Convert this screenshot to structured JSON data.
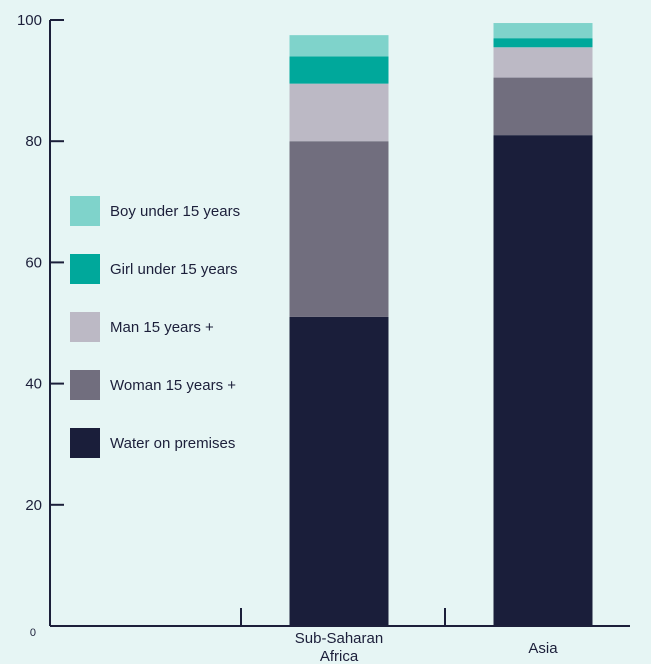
{
  "chart_data": {
    "type": "bar",
    "stacked": true,
    "title": "",
    "xlabel": "",
    "ylabel": "",
    "ylim": [
      0,
      100
    ],
    "yticks": [
      {
        "value": 0,
        "label": "0"
      },
      {
        "value": 20,
        "label": "20"
      },
      {
        "value": 40,
        "label": "40"
      },
      {
        "value": 60,
        "label": "60"
      },
      {
        "value": 80,
        "label": "80"
      },
      {
        "value": 100,
        "label": "100"
      }
    ],
    "categories": [
      "",
      "Sub-Saharan Africa",
      "Asia"
    ],
    "series": [
      {
        "name": "Water on premises",
        "color": "#1a1e3a",
        "values": [
          0,
          51,
          81
        ]
      },
      {
        "name": "Woman 15 years +",
        "color": "#716e7e",
        "values": [
          0,
          29,
          9.5
        ]
      },
      {
        "name": "Man 15 years +",
        "color": "#bcb9c5",
        "values": [
          0,
          9.5,
          5
        ]
      },
      {
        "name": "Girl under 15 years",
        "color": "#00a89b",
        "values": [
          0,
          4.5,
          1.5
        ]
      },
      {
        "name": "Boy under 15 years",
        "color": "#7fd3cb",
        "values": [
          0,
          3.5,
          2.5
        ]
      }
    ],
    "legend": {
      "position": "left",
      "order": [
        "Boy under 15 years",
        "Girl under 15 years",
        "Man 15 years +",
        "Woman 15 years +",
        "Water on premises"
      ]
    },
    "grid": false
  }
}
